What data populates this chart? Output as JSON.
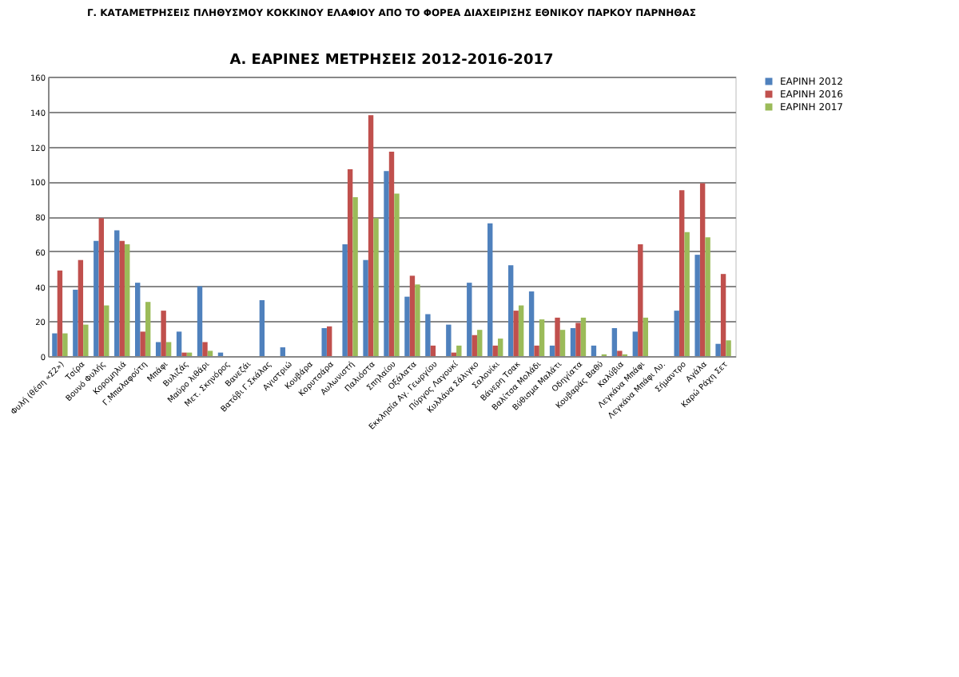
{
  "chart_data": {
    "type": "bar",
    "title": "Γ. ΚΑΤΑΜΕΤΡΗΣΕΙΣ ΠΛΗΘΥΣΜΟΥ ΚΟΚΚΙΝΟΥ ΕΛΑΦΙΟΥ ΑΠΟ ΤΟ ΦΟΡΕΑ ΔΙΑΧΕΙΡΙΣΗΣ ΕΘΝΙΚΟΥ ΠΑΡΚΟΥ ΠΑΡΝΗΘΑΣ",
    "subtitle": "Α. ΕΑΡΙΝΕΣ ΜΕΤΡΗΣΕΙΣ 2012-2016-2017",
    "categories": [
      "Φυλή (θέση «Σ2»)",
      "Τσίρα",
      "Βουνό Φυλής",
      "Κορομηλιά",
      "Γ.Μπαλαφούτη",
      "Μπάφι",
      "Βυλιζάς",
      "Μαύρο λιθάρι",
      "Μετ. Σκηνόρος",
      "Βανεζάι",
      "Βατόβι Γ.Σκάλας",
      "Αγιστριώ",
      "Κουβάρα",
      "Κορυτσάρα",
      "Αυλωνιστή",
      "Παλιόστα",
      "Σπηλαίου",
      "Οξάλατα",
      "Εκκλησία Αγ. Γεωργίου",
      "Πύργος Λαγουκί",
      "Κυλλάνα Σάλιγκο",
      "Σαλονίκι",
      "Βάνερη Τσακ",
      "Βαλίτσα Μολάδι",
      "Βύθισμα Μαλάτι",
      "Οδηγίατα",
      "Κουβαράς Βαθύ",
      "Καλύβια",
      "Λεγκάνα Μπάφι",
      "Λεγκάνα Μπάφι Λυ.",
      "Σήμαντρο",
      "Αγάλα",
      "Καρώ Ράχη Σετ"
    ],
    "series": [
      {
        "name": "ΕΑΡΙΝΗ 2012",
        "color": "#4f81bd",
        "values": [
          13,
          38,
          66,
          72,
          42,
          8,
          14,
          40,
          2,
          0,
          32,
          5,
          0,
          16,
          64,
          55,
          106,
          34,
          24,
          18,
          42,
          76,
          52,
          37,
          6,
          16,
          6,
          16,
          14,
          0,
          26,
          58,
          7
        ]
      },
      {
        "name": "ΕΑΡΙΝΗ 2016",
        "color": "#c0504d",
        "values": [
          49,
          55,
          79,
          66,
          14,
          26,
          2,
          8,
          0,
          0,
          0,
          0,
          0,
          17,
          107,
          138,
          117,
          46,
          6,
          2,
          12,
          6,
          26,
          6,
          22,
          19,
          0,
          3,
          64,
          0,
          95,
          99,
          47
        ]
      },
      {
        "name": "ΕΑΡΙΝΗ 2017",
        "color": "#9bbb59",
        "values": [
          13,
          18,
          29,
          64,
          31,
          8,
          2,
          3,
          0,
          0,
          0,
          0,
          0,
          0,
          91,
          79,
          93,
          41,
          0,
          6,
          15,
          10,
          29,
          21,
          15,
          22,
          1,
          1,
          22,
          0,
          71,
          68,
          9
        ]
      }
    ],
    "ylim": [
      0,
      160
    ],
    "yticks": [
      0,
      20,
      40,
      60,
      80,
      100,
      120,
      140,
      160
    ],
    "grid": "y",
    "legend": "right"
  }
}
